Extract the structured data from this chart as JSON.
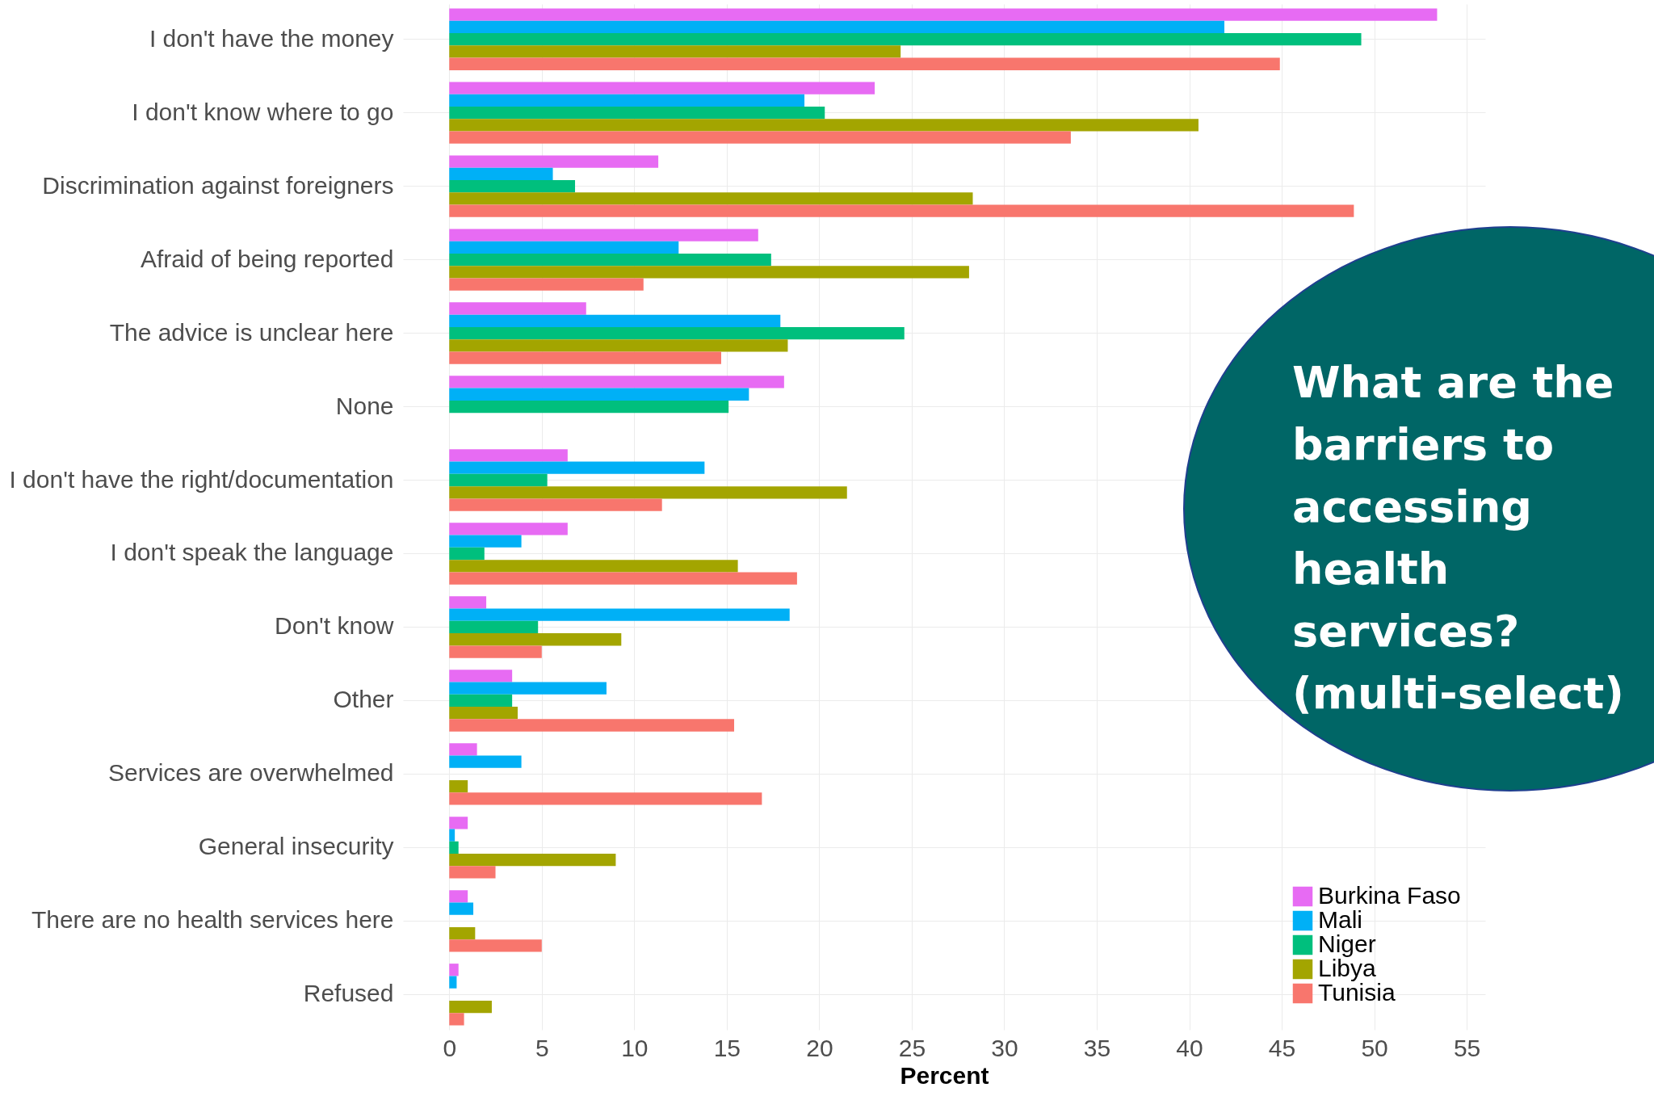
{
  "chart_data": {
    "type": "bar",
    "orientation": "horizontal",
    "xlabel": "Percent",
    "legend": "bottom right",
    "grid": true,
    "categories": [
      "I don't have the money",
      "I don't know where to go",
      "Discrimination against foreigners",
      "Afraid of being reported",
      "The advice is unclear here",
      "None",
      "I don't have the right/documentation",
      "I don't speak the language",
      "Don't know",
      "Other",
      "Services are overwhelmed",
      "General insecurity",
      "There are no health services here",
      "Refused"
    ],
    "xlim": [
      -2.5,
      56
    ],
    "xticks": [
      0,
      5,
      10,
      15,
      20,
      25,
      30,
      35,
      40,
      45,
      50,
      55
    ],
    "series": [
      {
        "name": "Burkina Faso",
        "color": "#e76bf3",
        "values": [
          53.4,
          23.0,
          11.3,
          16.7,
          7.4,
          18.1,
          6.4,
          6.4,
          2.0,
          3.4,
          1.5,
          1.0,
          1.0,
          0.5
        ]
      },
      {
        "name": "Mali",
        "color": "#00b0f6",
        "values": [
          41.9,
          19.2,
          5.6,
          12.4,
          17.9,
          16.2,
          13.8,
          3.9,
          18.4,
          8.5,
          3.9,
          0.3,
          1.3,
          0.4
        ]
      },
      {
        "name": "Niger",
        "color": "#00bf7d",
        "values": [
          49.3,
          20.3,
          6.8,
          17.4,
          24.6,
          15.1,
          5.3,
          1.9,
          4.8,
          3.4,
          null,
          0.5,
          null,
          null
        ]
      },
      {
        "name": "Libya",
        "color": "#a3a500",
        "values": [
          24.4,
          40.5,
          28.3,
          28.1,
          18.3,
          null,
          21.5,
          15.6,
          9.3,
          3.7,
          1.0,
          9.0,
          1.4,
          2.3
        ]
      },
      {
        "name": "Tunisia",
        "color": "#f8766d",
        "values": [
          44.9,
          33.6,
          48.9,
          10.5,
          14.7,
          null,
          11.5,
          18.8,
          5.0,
          15.4,
          16.9,
          2.5,
          5.0,
          0.8
        ]
      }
    ],
    "annotations": [
      "What are the barriers to accessing health services? (multi-select)"
    ]
  }
}
